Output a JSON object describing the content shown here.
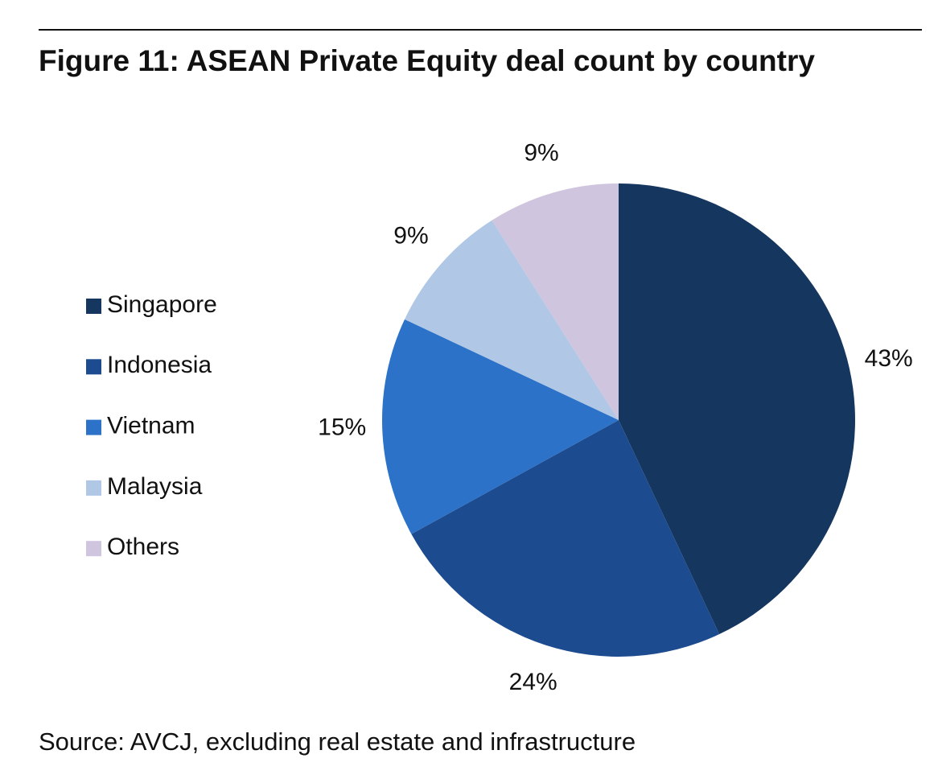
{
  "chart_data": {
    "type": "pie",
    "title": "Figure 11: ASEAN Private Equity deal count by country",
    "source": "Source: AVCJ, excluding real estate and infrastructure",
    "categories": [
      "Singapore",
      "Indonesia",
      "Vietnam",
      "Malaysia",
      "Others"
    ],
    "values": [
      43,
      24,
      15,
      9,
      9
    ],
    "value_labels": [
      "43%",
      "24%",
      "15%",
      "9%",
      "9%"
    ],
    "colors": [
      "#15375f",
      "#1d4b8f",
      "#2b72c8",
      "#b0c7e5",
      "#cfc5de"
    ],
    "legend": "left"
  }
}
